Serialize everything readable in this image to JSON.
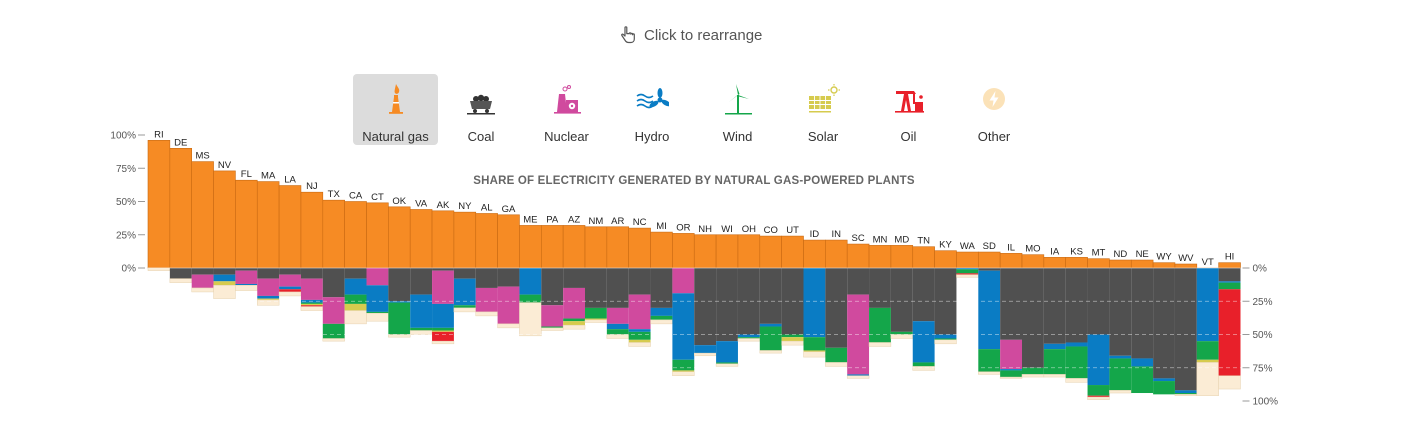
{
  "hint": {
    "label": "Click to rearrange",
    "icon": "pointer-hand-icon"
  },
  "tabs": [
    {
      "label": "Natural gas",
      "icon": "gas-flame-icon",
      "active": true
    },
    {
      "label": "Coal",
      "icon": "coal-cart-icon",
      "active": false
    },
    {
      "label": "Nuclear",
      "icon": "nuclear-plant-icon",
      "active": false
    },
    {
      "label": "Hydro",
      "icon": "hydro-turbine-icon",
      "active": false
    },
    {
      "label": "Wind",
      "icon": "wind-turbine-icon",
      "active": false
    },
    {
      "label": "Solar",
      "icon": "solar-panel-icon",
      "active": false
    },
    {
      "label": "Oil",
      "icon": "oil-pump-icon",
      "active": false
    },
    {
      "label": "Other",
      "icon": "other-bolt-icon",
      "active": false
    }
  ],
  "colors": {
    "natural_gas": "#f68b24",
    "coal": "#505050",
    "nuclear": "#d04a9e",
    "hydro": "#0a7cc4",
    "wind": "#14a64a",
    "solar": "#d6cb4e",
    "oil": "#e8202a",
    "other": "#fbecd5"
  },
  "chart_data": {
    "type": "bar",
    "title": "SHARE OF ELECTRICITY GENERATED BY NATURAL GAS-POWERED PLANTS",
    "selected_source": "Natural gas",
    "top_axis": {
      "ticks": [
        "100%",
        "75%",
        "50%",
        "25%",
        "0%"
      ],
      "range": [
        0,
        100
      ]
    },
    "bottom_axis": {
      "ticks": [
        "0%",
        "25%",
        "50%",
        "75%",
        "100%"
      ],
      "range": [
        0,
        100
      ]
    },
    "categories": [
      "RI",
      "DE",
      "MS",
      "NV",
      "FL",
      "MA",
      "LA",
      "NJ",
      "TX",
      "CA",
      "CT",
      "OK",
      "VA",
      "AK",
      "NY",
      "AL",
      "GA",
      "ME",
      "PA",
      "AZ",
      "NM",
      "AR",
      "NC",
      "MI",
      "OR",
      "NH",
      "WI",
      "OH",
      "CO",
      "UT",
      "ID",
      "IN",
      "SC",
      "MN",
      "MD",
      "TN",
      "KY",
      "WA",
      "SD",
      "IL",
      "MO",
      "IA",
      "KS",
      "MT",
      "ND",
      "NE",
      "WY",
      "WV",
      "VT",
      "HI"
    ],
    "natural_gas": [
      96,
      90,
      80,
      73,
      66,
      65,
      62,
      57,
      51,
      50,
      49,
      46,
      44,
      43,
      42,
      41,
      40,
      32,
      32,
      32,
      31,
      31,
      30,
      27,
      26,
      25,
      25,
      25,
      24,
      24,
      21,
      21,
      18,
      17,
      17,
      16,
      13,
      12,
      12,
      11,
      10,
      8,
      8,
      7,
      6,
      6,
      4,
      3,
      0,
      4
    ],
    "other_sources": {
      "coal": [
        0,
        8,
        5,
        5,
        2,
        8,
        5,
        8,
        22,
        8,
        0,
        25,
        20,
        2,
        8,
        15,
        14,
        0,
        28,
        15,
        30,
        30,
        20,
        30,
        0,
        58,
        55,
        50,
        42,
        50,
        0,
        60,
        20,
        30,
        48,
        40,
        50,
        0,
        2,
        54,
        75,
        57,
        56,
        50,
        66,
        68,
        83,
        92,
        0,
        10
      ],
      "nuclear": [
        0,
        0,
        10,
        0,
        10,
        13,
        9,
        16,
        20,
        0,
        13,
        0,
        0,
        25,
        0,
        18,
        28,
        0,
        16,
        23,
        0,
        12,
        26,
        0,
        19,
        0,
        0,
        0,
        0,
        0,
        0,
        0,
        60,
        0,
        0,
        0,
        0,
        0,
        0,
        22,
        0,
        0,
        0,
        0,
        0,
        0,
        0,
        0,
        0,
        0
      ],
      "hydro": [
        0,
        0,
        0,
        5,
        1,
        2,
        2,
        2,
        0,
        12,
        20,
        1,
        25,
        18,
        20,
        0,
        0,
        20,
        0,
        0,
        0,
        4,
        2,
        6,
        50,
        6,
        16,
        2,
        2,
        0,
        52,
        0,
        1,
        0,
        0,
        31,
        3,
        1,
        59,
        1,
        0,
        4,
        3,
        38,
        2,
        6,
        2,
        2,
        55,
        1
      ],
      "wind": [
        0,
        0,
        0,
        0,
        0,
        0,
        0,
        1,
        11,
        7,
        1,
        24,
        2,
        2,
        2,
        0,
        0,
        6,
        1,
        2,
        8,
        4,
        6,
        3,
        8,
        0,
        1,
        1,
        18,
        2,
        10,
        11,
        0,
        26,
        2,
        3,
        1,
        3,
        17,
        5,
        5,
        19,
        24,
        8,
        24,
        20,
        10,
        1,
        14,
        5
      ],
      "solar": [
        0,
        0,
        0,
        3,
        0,
        1,
        0,
        1,
        0,
        5,
        0,
        0,
        0,
        1,
        0,
        0,
        0,
        0,
        0,
        3,
        1,
        0,
        2,
        0,
        1,
        0,
        0,
        0,
        0,
        3,
        1,
        0,
        0,
        0,
        0,
        0,
        0,
        0,
        0,
        0,
        0,
        0,
        0,
        0,
        0,
        0,
        0,
        0,
        2,
        0
      ],
      "oil": [
        0,
        0,
        0,
        0,
        0,
        0,
        2,
        1,
        0,
        0,
        0,
        0,
        0,
        7,
        0,
        0,
        0,
        0,
        0,
        0,
        0,
        0,
        0,
        0,
        0,
        0,
        0,
        0,
        0,
        0,
        0,
        0,
        0,
        0,
        0,
        0,
        0,
        1,
        0,
        0,
        0,
        0,
        0,
        1,
        0,
        0,
        0,
        0,
        0,
        65
      ],
      "other": [
        2,
        3,
        3,
        10,
        4,
        4,
        3,
        3,
        2,
        10,
        6,
        2,
        3,
        2,
        3,
        3,
        3,
        25,
        2,
        3,
        2,
        3,
        3,
        3,
        3,
        2,
        2,
        2,
        2,
        3,
        4,
        3,
        2,
        3,
        3,
        3,
        3,
        2,
        2,
        1,
        2,
        2,
        3,
        2,
        2,
        0,
        0,
        1,
        25,
        10
      ]
    }
  }
}
